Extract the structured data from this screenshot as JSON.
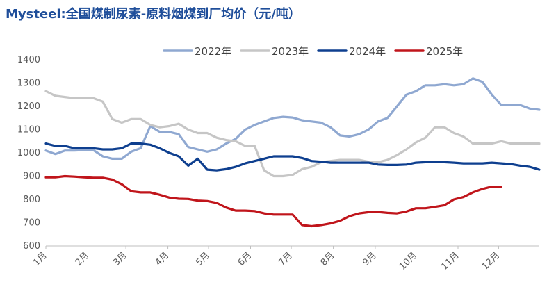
{
  "chart_data": {
    "type": "line",
    "title": "Mysteel:全国煤制尿素-原料烟煤到厂均价（元/吨）",
    "xlabel": "",
    "ylabel": "",
    "ylim": [
      600,
      1400
    ],
    "yticks": [
      600,
      700,
      800,
      900,
      1000,
      1100,
      1200,
      1300,
      1400
    ],
    "xlim": [
      0,
      52
    ],
    "xticks": [
      {
        "label": "1月",
        "x": 0
      },
      {
        "label": "2月",
        "x": 4.43
      },
      {
        "label": "3月",
        "x": 8.43
      },
      {
        "label": "4月",
        "x": 12.86
      },
      {
        "label": "5月",
        "x": 17.14
      },
      {
        "label": "6月",
        "x": 21.57
      },
      {
        "label": "7月",
        "x": 25.86
      },
      {
        "label": "8月",
        "x": 30.29
      },
      {
        "label": "9月",
        "x": 34.71
      },
      {
        "label": "10月",
        "x": 39.0
      },
      {
        "label": "11月",
        "x": 43.43
      },
      {
        "label": "12月",
        "x": 47.71
      }
    ],
    "grid": false,
    "legend": "top",
    "series": [
      {
        "name": "2022年",
        "color": "#8fa8d1",
        "values": [
          1010,
          995,
          1010,
          1010,
          1012,
          1012,
          985,
          975,
          975,
          1005,
          1020,
          1115,
          1090,
          1090,
          1080,
          1025,
          1015,
          1005,
          1015,
          1040,
          1060,
          1100,
          1120,
          1135,
          1150,
          1155,
          1152,
          1140,
          1135,
          1130,
          1110,
          1075,
          1070,
          1080,
          1100,
          1135,
          1150,
          1200,
          1250,
          1265,
          1290,
          1290,
          1295,
          1290,
          1295,
          1320,
          1305,
          1250,
          1205,
          1205,
          1205,
          1190,
          1185
        ]
      },
      {
        "name": "2023年",
        "color": "#c6c6c6",
        "values": [
          1265,
          1245,
          1240,
          1235,
          1235,
          1235,
          1220,
          1145,
          1130,
          1145,
          1145,
          1120,
          1110,
          1115,
          1125,
          1100,
          1085,
          1085,
          1065,
          1055,
          1050,
          1030,
          1030,
          925,
          900,
          900,
          905,
          930,
          940,
          960,
          965,
          970,
          970,
          970,
          962,
          960,
          970,
          990,
          1015,
          1045,
          1065,
          1110,
          1110,
          1085,
          1070,
          1040,
          1040,
          1040,
          1050,
          1040,
          1040,
          1040,
          1040
        ]
      },
      {
        "name": "2024年",
        "color": "#0e3f8f",
        "values": [
          1040,
          1030,
          1030,
          1020,
          1020,
          1020,
          1015,
          1015,
          1020,
          1040,
          1040,
          1035,
          1020,
          1000,
          985,
          945,
          975,
          928,
          925,
          930,
          940,
          955,
          965,
          975,
          985,
          985,
          985,
          978,
          965,
          962,
          958,
          958,
          958,
          958,
          958,
          950,
          948,
          948,
          950,
          958,
          960,
          960,
          960,
          958,
          955,
          955,
          955,
          958,
          955,
          952,
          945,
          940,
          928
        ]
      },
      {
        "name": "2025年",
        "color": "#c0151b",
        "values": [
          895,
          895,
          900,
          898,
          895,
          893,
          893,
          885,
          865,
          835,
          830,
          830,
          820,
          808,
          803,
          802,
          795,
          793,
          785,
          765,
          752,
          752,
          750,
          740,
          735,
          735,
          735,
          690,
          685,
          690,
          697,
          708,
          728,
          740,
          745,
          746,
          742,
          740,
          748,
          762,
          762,
          768,
          775,
          800,
          810,
          830,
          845,
          855,
          855
        ]
      }
    ]
  }
}
